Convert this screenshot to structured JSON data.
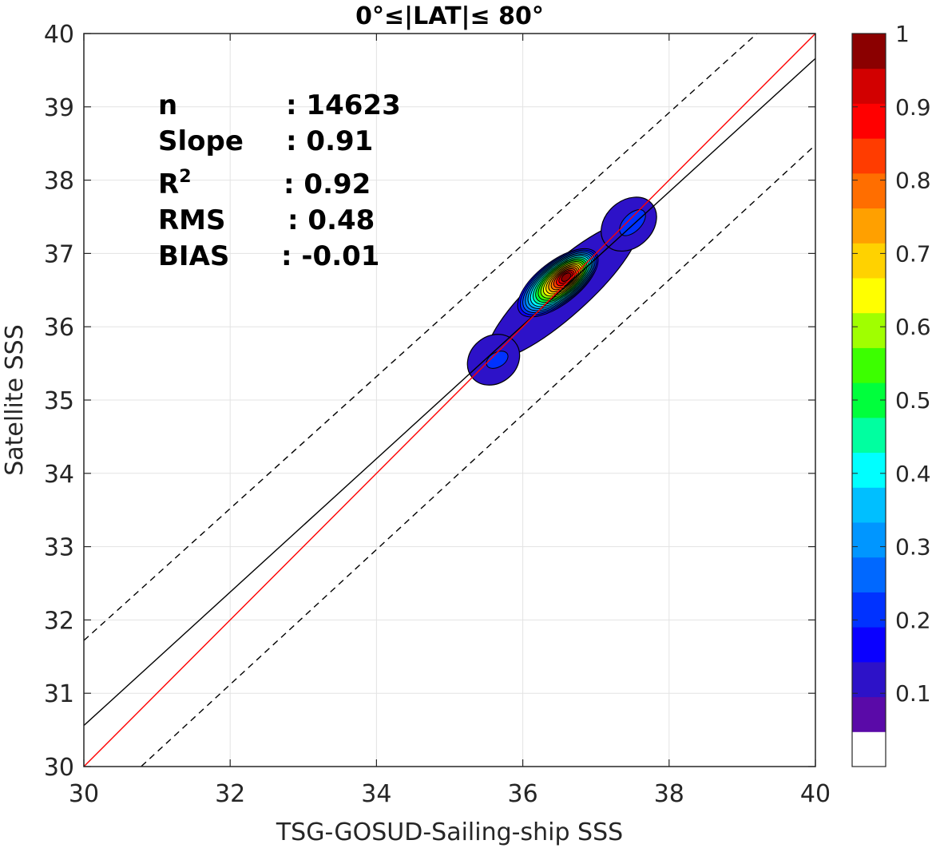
{
  "chart_data": {
    "type": "scatter",
    "title": "0°≤|LAT|≤ 80°",
    "xlabel": "TSG-GOSUD-Sailing-ship SSS",
    "ylabel": "Satellite SSS",
    "xlim": [
      30,
      40
    ],
    "ylim": [
      30,
      40
    ],
    "xticks": [
      "30",
      "32",
      "34",
      "36",
      "38",
      "40"
    ],
    "yticks": [
      "30",
      "31",
      "32",
      "33",
      "34",
      "35",
      "36",
      "37",
      "38",
      "39",
      "40"
    ],
    "grid": true,
    "stats": [
      {
        "label": "n",
        "value": ": 14623"
      },
      {
        "label": "Slope",
        "value": ": 0.91"
      },
      {
        "label": "R",
        "sup": "2",
        "value": ": 0.92"
      },
      {
        "label": "RMS",
        "value": ": 0.48"
      },
      {
        "label": "BIAS",
        "value": ": -0.01"
      }
    ],
    "lines": {
      "one_to_one": {
        "color": "#ff0000",
        "x": [
          30,
          40
        ],
        "y": [
          30,
          40
        ]
      },
      "regression": {
        "color": "#000000",
        "x": [
          30,
          40
        ],
        "y": [
          30.56,
          39.66
        ]
      },
      "upper_bound": {
        "color": "#000000",
        "style": "dashed",
        "x": [
          30,
          40
        ],
        "y": [
          31.72,
          40.72
        ]
      },
      "lower_bound": {
        "color": "#000000",
        "style": "dashed",
        "x": [
          30,
          40
        ],
        "y": [
          29.28,
          38.48
        ]
      }
    },
    "density_contours": {
      "description_levels": [
        0.05,
        0.1,
        0.15,
        0.2,
        0.25,
        0.3,
        0.35,
        0.4,
        0.45,
        0.5,
        0.55,
        0.6,
        0.65,
        0.7,
        0.75,
        0.8,
        0.85,
        0.9,
        0.95,
        1.0
      ],
      "peak": {
        "x": 36.6,
        "y": 36.68
      },
      "secondary_peaks": [
        {
          "x": 35.65,
          "y": 35.55
        },
        {
          "x": 37.5,
          "y": 37.45
        }
      ],
      "outer_extent": {
        "xmin": 35.3,
        "xmax": 37.75,
        "ymin": 35.25,
        "ymax": 37.8
      }
    },
    "colorbar": {
      "range": [
        0,
        1
      ],
      "tick_labels": [
        "0.1",
        "0.2",
        "0.3",
        "0.4",
        "0.5",
        "0.6",
        "0.7",
        "0.8",
        "0.9",
        "1"
      ],
      "colors": [
        "#ffffff",
        "#5a0aa8",
        "#2d12c8",
        "#0a00ff",
        "#0032ff",
        "#0068ff",
        "#0096ff",
        "#00bfff",
        "#00ffff",
        "#00ffa0",
        "#00ff3c",
        "#3cff00",
        "#a0ff00",
        "#ffff00",
        "#ffd200",
        "#ffa000",
        "#ff6e00",
        "#ff3c00",
        "#ff0000",
        "#d20000",
        "#8b0000"
      ]
    }
  }
}
